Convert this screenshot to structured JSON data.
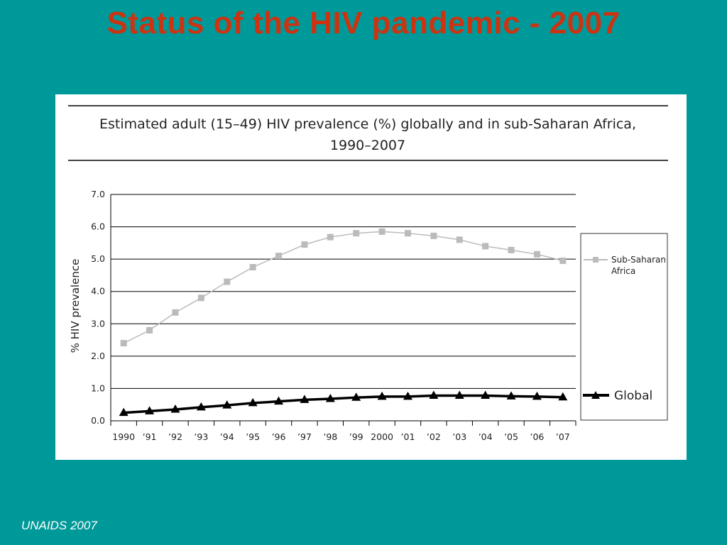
{
  "slide": {
    "title": "Status of the HIV pandemic - 2007",
    "source": "UNAIDS 2007"
  },
  "chart_data": {
    "type": "line",
    "title_line1": "Estimated adult (15–49) HIV prevalence (%) globally and in sub-Saharan Africa,",
    "title_line2": "1990–2007",
    "xlabel": "",
    "ylabel": "% HIV prevalence",
    "categories": [
      "1990",
      "’91",
      "’92",
      "’93",
      "’94",
      "’95",
      "’96",
      "’97",
      "’98",
      "’99",
      "2000",
      "’01",
      "’02",
      "’03",
      "’04",
      "’05",
      "’06",
      "’07"
    ],
    "y_ticks": [
      "0.0",
      "1.0",
      "2.0",
      "3.0",
      "4.0",
      "5.0",
      "6.0",
      "7.0"
    ],
    "ylim": [
      0,
      7
    ],
    "grid": true,
    "legend_position": "right",
    "series": [
      {
        "name": "Sub-Saharan Africa",
        "legend_line1": "Sub-Saharan",
        "legend_line2": "Africa",
        "color": "#bbbbbb",
        "marker": "square",
        "values": [
          2.4,
          2.8,
          3.35,
          3.8,
          4.3,
          4.75,
          5.1,
          5.45,
          5.68,
          5.8,
          5.85,
          5.8,
          5.72,
          5.6,
          5.4,
          5.28,
          5.15,
          4.95
        ]
      },
      {
        "name": "Global",
        "color": "#000000",
        "marker": "triangle",
        "values": [
          0.25,
          0.3,
          0.35,
          0.42,
          0.48,
          0.55,
          0.6,
          0.65,
          0.68,
          0.72,
          0.75,
          0.75,
          0.78,
          0.78,
          0.78,
          0.76,
          0.75,
          0.73
        ]
      }
    ]
  }
}
